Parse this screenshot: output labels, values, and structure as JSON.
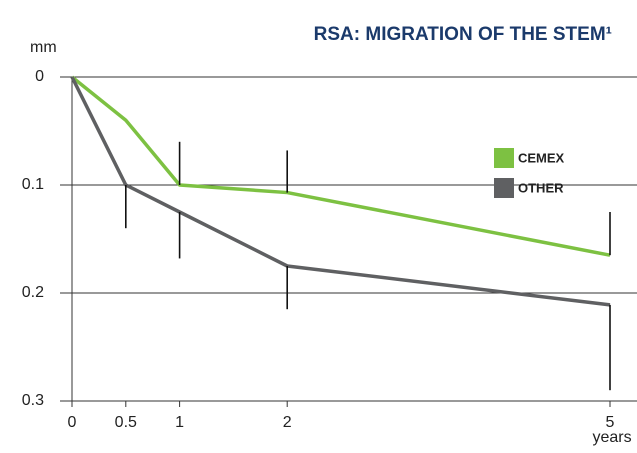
{
  "chart_data": {
    "type": "line",
    "title": "RSA: MIGRATION OF THE STEM¹",
    "y_label": "mm",
    "x_label": "years",
    "ylim": [
      0,
      0.3
    ],
    "yticks": [
      0,
      0.1,
      0.2,
      0.3
    ],
    "y_inverted": true,
    "xlim": [
      0,
      5
    ],
    "xticks": [
      0,
      0.5,
      1,
      2,
      5
    ],
    "grid": true,
    "legend": "right",
    "x": [
      0,
      0.5,
      1,
      2,
      5
    ],
    "series": [
      {
        "name": "CEMEX",
        "color": "#7dc142",
        "values": [
          0,
          0.04,
          0.1,
          0.107,
          0.165
        ],
        "errors": [
          null,
          null,
          0.04,
          0.039,
          0.04
        ],
        "error_side": "minus"
      },
      {
        "name": "OTHER",
        "color": "#5f6062",
        "values": [
          0,
          0.1,
          0.125,
          0.175,
          0.211
        ],
        "errors": [
          null,
          0.04,
          0.043,
          0.04,
          0.079
        ],
        "error_side": "plus"
      }
    ]
  }
}
